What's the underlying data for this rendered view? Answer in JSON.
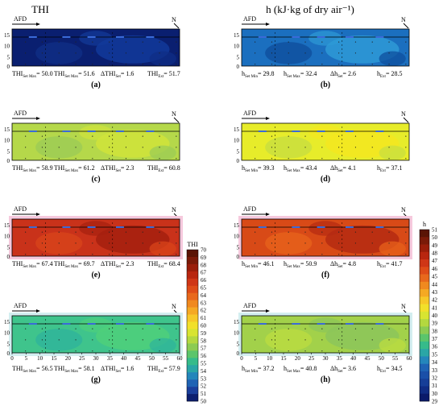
{
  "titles": {
    "left": "THI",
    "right": "h (kJ·kg of dry air⁻¹)"
  },
  "markers": {
    "afd": "AFD",
    "north": "N"
  },
  "y_ticks": [
    "15",
    "10",
    "5",
    "0"
  ],
  "x_ticks": [
    "0",
    "5",
    "10",
    "15",
    "20",
    "25",
    "30",
    "35",
    "40",
    "45",
    "50",
    "55",
    "60"
  ],
  "panels": [
    {
      "id": "a",
      "caption": "(a)",
      "stats": [
        "THI",
        "Set Max",
        "= 50.0",
        "THI",
        "Set Max",
        "= 51.6",
        "ΔTHI",
        "Set",
        "= 1.6",
        "THI",
        "Ext",
        "= 51.7"
      ],
      "colors": [
        "#0a1f70",
        "#123a9a",
        "#0f2e86"
      ]
    },
    {
      "id": "b",
      "caption": "(b)",
      "stats": [
        "h",
        "Set Min",
        "= 29.8",
        "h",
        "Set Max",
        "= 32.4",
        "Δh",
        "Set",
        "= 2.6",
        "h",
        "Ext",
        "= 28.5"
      ],
      "colors": [
        "#1b6fbf",
        "#2e9ad6",
        "#0f4f9e"
      ]
    },
    {
      "id": "c",
      "caption": "(c)",
      "stats": [
        "THI",
        "Set Max",
        "= 58.9",
        "THI",
        "Set Max",
        "= 61.2",
        "ΔTHI",
        "Set",
        "= 2.3",
        "THI",
        "Ext",
        "= 60.8"
      ],
      "colors": [
        "#b5d84a",
        "#d0e43a",
        "#9ccc55"
      ]
    },
    {
      "id": "d",
      "caption": "(d)",
      "stats": [
        "h",
        "Set Min",
        "= 39.3",
        "h",
        "Set Max",
        "= 43.4",
        "Δh",
        "Set",
        "= 4.1",
        "h",
        "Ext",
        "= 37.1"
      ],
      "colors": [
        "#e7ec2a",
        "#f3e820",
        "#c8df40"
      ]
    },
    {
      "id": "e",
      "caption": "(e)",
      "stats": [
        "THI",
        "Set Max",
        "= 67.4",
        "THI",
        "Set Max",
        "= 69.7",
        "ΔTHI",
        "Set",
        "= 2.3",
        "THI",
        "Ext",
        "= 68.4"
      ],
      "colors": [
        "#c9321a",
        "#a5200f",
        "#d8441a"
      ]
    },
    {
      "id": "f",
      "caption": "(f)",
      "stats": [
        "h",
        "Set Min",
        "= 46.1",
        "h",
        "Set Max",
        "= 50.9",
        "Δh",
        "Set",
        "= 4.8",
        "h",
        "Ext",
        "= 41.7"
      ],
      "colors": [
        "#d84a17",
        "#b52a12",
        "#e7621b"
      ]
    },
    {
      "id": "g",
      "caption": "(g)",
      "stats": [
        "THI",
        "Set Max",
        "= 56.5",
        "THI",
        "Set Max",
        "= 58.1",
        "ΔTHI",
        "Set",
        "= 1.6",
        "THI",
        "Ext",
        "= 57.9"
      ],
      "colors": [
        "#3fc48c",
        "#4fd07a",
        "#2fb49b"
      ]
    },
    {
      "id": "h",
      "caption": "(h)",
      "stats": [
        "h",
        "Set Min",
        "= 37.2",
        "h",
        "Set Max",
        "= 40.8",
        "Δh",
        "Set",
        "= 3.6",
        "h",
        "Ext",
        "= 34.5"
      ],
      "colors": [
        "#a2d14a",
        "#8cc65a",
        "#bcdc40"
      ]
    }
  ],
  "thi_colorbar": {
    "title": "THI",
    "labels": [
      "70",
      "69",
      "68",
      "67",
      "66",
      "65",
      "64",
      "63",
      "62",
      "61",
      "60",
      "59",
      "58",
      "57",
      "56",
      "55",
      "54",
      "53",
      "52",
      "51",
      "50"
    ],
    "colors": [
      "#5a1405",
      "#7a1a08",
      "#9a1e0a",
      "#b8260f",
      "#cf3616",
      "#de4c18",
      "#e8681c",
      "#f0891f",
      "#f5a923",
      "#f7c828",
      "#f2e02a",
      "#d8e431",
      "#b4d83f",
      "#8ccb52",
      "#5bc56b",
      "#36bb8a",
      "#2aa6a6",
      "#2486bb",
      "#1f63b4",
      "#1a3f9c",
      "#0c1f70"
    ]
  },
  "h_colorbar": {
    "title": "h",
    "labels": [
      "51",
      "50",
      "49",
      "48",
      "47",
      "46",
      "45",
      "44",
      "43",
      "42",
      "41",
      "40",
      "39",
      "38",
      "37",
      "36",
      "35",
      "34",
      "33",
      "32",
      "31",
      "30",
      "29"
    ],
    "colors": [
      "#5a1405",
      "#7a1a08",
      "#9a1e0a",
      "#b8260f",
      "#cf3616",
      "#de4c18",
      "#e8681c",
      "#f0891f",
      "#f5a923",
      "#f7c828",
      "#f2e02a",
      "#d8e431",
      "#b4d83f",
      "#8ccb52",
      "#5bc56b",
      "#36bb8a",
      "#2aa6a6",
      "#2486bb",
      "#1f63b4",
      "#1a4fa8",
      "#163e98",
      "#102c84",
      "#0a1a6a"
    ]
  }
}
